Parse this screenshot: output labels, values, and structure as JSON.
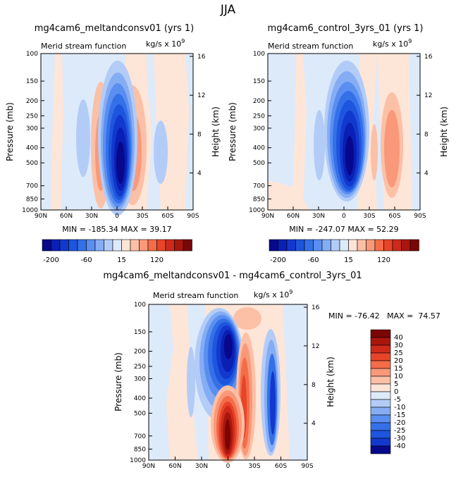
{
  "figure_title": "JJA",
  "pressure_ticks": [
    "100",
    "150",
    "200",
    "250",
    "300",
    "400",
    "500",
    "700",
    "850",
    "1000"
  ],
  "height_ticks": [
    "16",
    "12",
    "8",
    "4"
  ],
  "lat_ticks": [
    "90N",
    "60N",
    "30N",
    "0",
    "30S",
    "60S",
    "90S"
  ],
  "panels": {
    "p1": {
      "title": "mg4cam6_meltandconsv01 (yrs 1)",
      "subtitle": "Merid stream function",
      "units": "kg/s x 10",
      "units_exp": "9",
      "ylabel": "Pressure (mb)",
      "y2label": "Height (km)",
      "minmax": "MIN = -185.34   MAX =  39.17"
    },
    "p2": {
      "title": "mg4cam6_control_3yrs_01 (yrs 1)",
      "subtitle": "Merid stream function",
      "units": "kg/s x 10",
      "units_exp": "9",
      "ylabel": "Pressure (mb)",
      "y2label": "Height (km)",
      "minmax": "MIN = -247.07   MAX =  52.29"
    },
    "p3": {
      "title": "mg4cam6_meltandconsv01 - mg4cam6_control_3yrs_01",
      "subtitle": "Merid stream function",
      "units": "kg/s x 10",
      "units_exp": "9",
      "ylabel": "Pressure (mb)",
      "y2label": "Height (km)",
      "minmax": "MIN = -76.42   MAX =  74.57"
    }
  },
  "colorbar_top": {
    "labels": [
      "-200",
      "-60",
      "15",
      "120"
    ],
    "colors": [
      "#08088c",
      "#0a1fb4",
      "#1238cd",
      "#1e55de",
      "#3470e8",
      "#5a8ef0",
      "#85adf4",
      "#b3ccf7",
      "#ddeafa",
      "#fde5d8",
      "#fbc0a6",
      "#f9997a",
      "#f46c48",
      "#e8442a",
      "#cd2a1b",
      "#a8170d",
      "#7a0606"
    ]
  },
  "colorbar_diff": {
    "labels": [
      "40",
      "30",
      "25",
      "20",
      "15",
      "10",
      "5",
      "0",
      "-5",
      "-10",
      "-15",
      "-20",
      "-25",
      "-30",
      "-40"
    ],
    "colors": [
      "#7a0606",
      "#a8170d",
      "#cd2a1b",
      "#e8442a",
      "#f46c48",
      "#f9997a",
      "#fbc0a6",
      "#fde5d8",
      "#ddeafa",
      "#b3ccf7",
      "#85adf4",
      "#5a8ef0",
      "#3470e8",
      "#1e55de",
      "#1238cd",
      "#08088c"
    ]
  },
  "chart_data": [
    {
      "type": "heatmap",
      "title": "mg4cam6_meltandconsv01 (yrs 1)",
      "xlabel": "",
      "ylabel": "Pressure (mb)",
      "x_range": [
        "90N",
        "90S"
      ],
      "y_range": [
        1000,
        100
      ],
      "y_scale": "log",
      "min": -185.34,
      "max": 39.17,
      "features": [
        {
          "lat": 3,
          "p": 500,
          "value": -185
        },
        {
          "lat": 28,
          "p": 450,
          "value": -40
        },
        {
          "lat": -23,
          "p": 550,
          "value": 39
        },
        {
          "lat": -50,
          "p": 450,
          "value": -10
        }
      ]
    },
    {
      "type": "heatmap",
      "title": "mg4cam6_control_3yrs_01 (yrs 1)",
      "xlabel": "",
      "ylabel": "Pressure (mb)",
      "x_range": [
        "90N",
        "90S"
      ],
      "y_range": [
        1000,
        100
      ],
      "y_scale": "log",
      "min": -247.07,
      "max": 52.29,
      "features": [
        {
          "lat": 8,
          "p": 500,
          "value": -247
        },
        {
          "lat": -25,
          "p": 500,
          "value": 52
        },
        {
          "lat": 30,
          "p": 450,
          "value": -30
        },
        {
          "lat": -55,
          "p": 500,
          "value": -10
        }
      ]
    },
    {
      "type": "heatmap",
      "title": "mg4cam6_meltandconsv01 - mg4cam6_control_3yrs_01",
      "xlabel": "",
      "ylabel": "Pressure (mb)",
      "x_range": [
        "90N",
        "90S"
      ],
      "y_range": [
        1000,
        100
      ],
      "y_scale": "log",
      "min": -76.42,
      "max": 74.57,
      "features": [
        {
          "lat": 0,
          "p": 230,
          "value": -76
        },
        {
          "lat": 0,
          "p": 550,
          "value": 74
        },
        {
          "lat": -25,
          "p": 500,
          "value": 40
        },
        {
          "lat": -45,
          "p": 500,
          "value": -40
        },
        {
          "lat": 25,
          "p": 500,
          "value": -15
        }
      ]
    }
  ]
}
